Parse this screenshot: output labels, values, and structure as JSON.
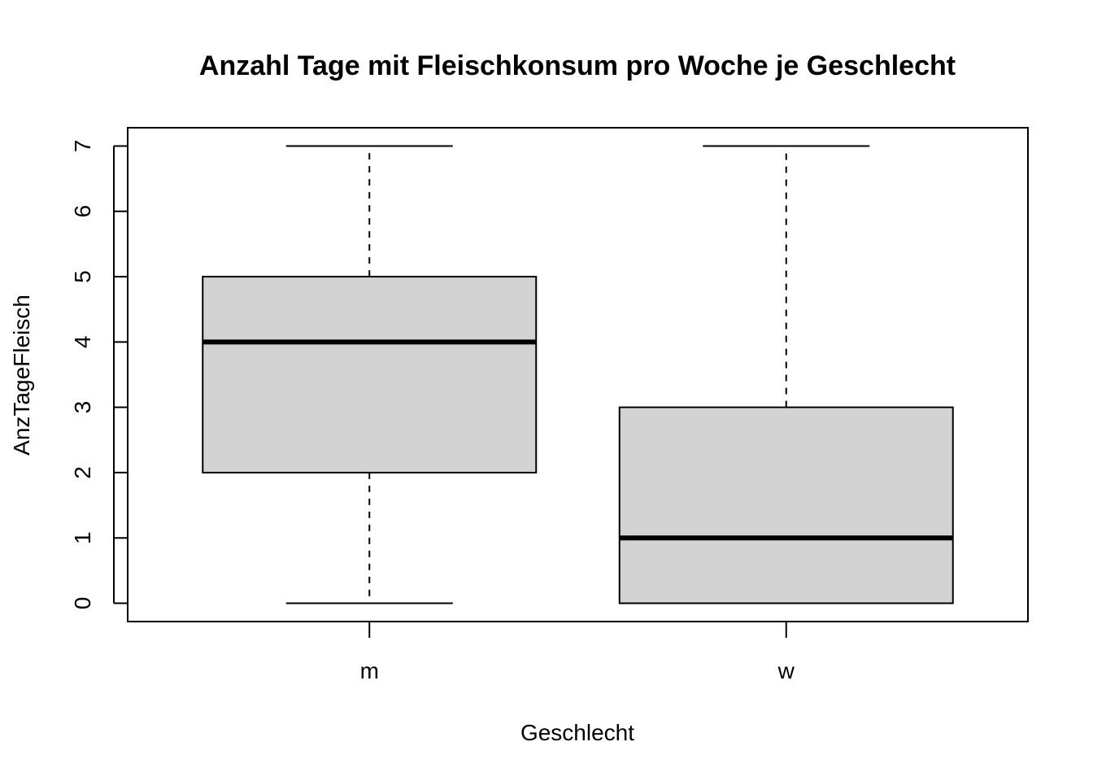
{
  "chart_data": {
    "type": "boxplot",
    "title": "Anzahl Tage mit Fleischkonsum pro Woche je Geschlecht",
    "xlabel": "Geschlecht",
    "ylabel": "AnzTageFleisch",
    "categories": [
      "m",
      "w"
    ],
    "y_ticks": [
      "0",
      "1",
      "2",
      "3",
      "4",
      "5",
      "6",
      "7"
    ],
    "ylim": [
      -0.28,
      7.28
    ],
    "grid": false,
    "legend": "none",
    "boxes": [
      {
        "category": "m",
        "min": 0,
        "q1": 2,
        "median": 4,
        "q3": 5,
        "max": 7
      },
      {
        "category": "w",
        "min": 0,
        "q1": 0,
        "median": 1,
        "q3": 3,
        "max": 7
      }
    ],
    "colors": {
      "box_fill": "#d3d3d3",
      "stroke": "#000000"
    }
  }
}
